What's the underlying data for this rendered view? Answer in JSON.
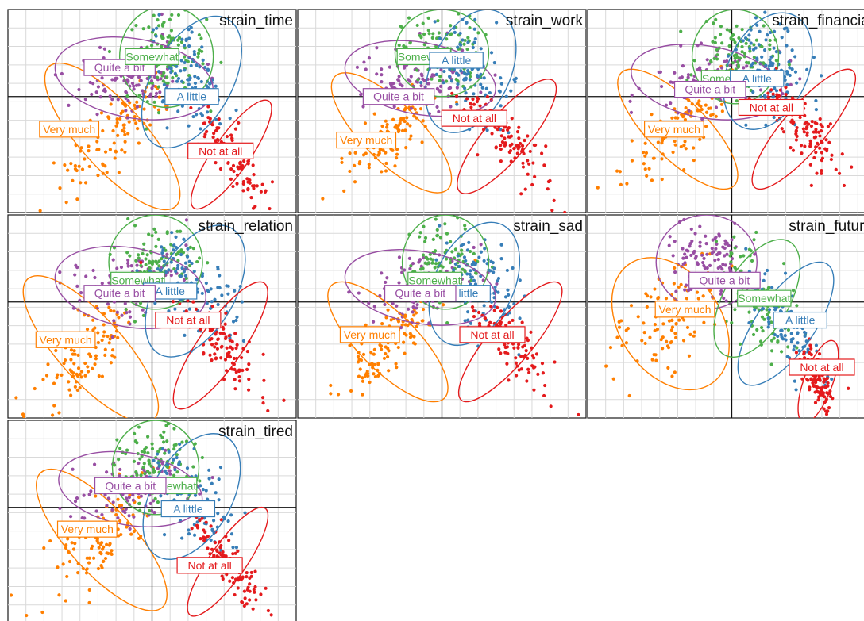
{
  "chart_data": {
    "type": "scatter",
    "grid": true,
    "legend": "none",
    "groups": [
      {
        "name": "Not at all",
        "color": "#e41a1c"
      },
      {
        "name": "A little",
        "color": "#377eb8"
      },
      {
        "name": "Somewhat",
        "color": "#4daf4a"
      },
      {
        "name": "Quite a bit",
        "color": "#984ea3"
      },
      {
        "name": "Very much",
        "color": "#ff7f00"
      }
    ],
    "xlim": [
      -2,
      2
    ],
    "ylim": [
      -1.6,
      1.2
    ],
    "facets": [
      {
        "title": "strain_time",
        "ellipses": [
          {
            "group": "Very much",
            "cx": -0.55,
            "cy": -0.55,
            "rx": 0.45,
            "ry": 1.3,
            "angle": 42
          },
          {
            "group": "Quite a bit",
            "cx": -0.25,
            "cy": 0.25,
            "rx": 0.55,
            "ry": 1.1,
            "angle": 80
          },
          {
            "group": "Somewhat",
            "cx": 0.2,
            "cy": 0.55,
            "rx": 0.65,
            "ry": 0.7,
            "angle": 0
          },
          {
            "group": "A little",
            "cx": 0.55,
            "cy": 0.2,
            "rx": 0.55,
            "ry": 1.0,
            "angle": -30
          },
          {
            "group": "Not at all",
            "cx": 1.1,
            "cy": -0.8,
            "rx": 0.25,
            "ry": 0.9,
            "angle": -35
          }
        ],
        "labels": [
          {
            "group": "Quite a bit",
            "x": -0.45,
            "y": 0.4
          },
          {
            "group": "Somewhat",
            "x": 0.0,
            "y": 0.55
          },
          {
            "group": "A little",
            "x": 0.55,
            "y": 0.0
          },
          {
            "group": "Very much",
            "x": -1.15,
            "y": -0.45
          },
          {
            "group": "Not at all",
            "x": 0.95,
            "y": -0.75
          }
        ]
      },
      {
        "title": "strain_work",
        "ellipses": [
          {
            "group": "Very much",
            "cx": -0.7,
            "cy": -0.5,
            "rx": 0.4,
            "ry": 1.1,
            "angle": 45
          },
          {
            "group": "Quite a bit",
            "cx": -0.3,
            "cy": 0.25,
            "rx": 0.5,
            "ry": 1.05,
            "angle": 80
          },
          {
            "group": "Somewhat",
            "cx": 0.0,
            "cy": 0.6,
            "rx": 0.65,
            "ry": 0.6,
            "angle": 0
          },
          {
            "group": "A little",
            "cx": 0.4,
            "cy": 0.35,
            "rx": 0.55,
            "ry": 0.9,
            "angle": -25
          },
          {
            "group": "Not at all",
            "cx": 0.9,
            "cy": -0.55,
            "rx": 0.3,
            "ry": 1.0,
            "angle": -40
          }
        ],
        "labels": [
          {
            "group": "Somewhat",
            "x": -0.25,
            "y": 0.55
          },
          {
            "group": "A little",
            "x": 0.2,
            "y": 0.5
          },
          {
            "group": "Quite a bit",
            "x": -0.6,
            "y": 0.0
          },
          {
            "group": "Very much",
            "x": -1.05,
            "y": -0.6
          },
          {
            "group": "Not at all",
            "x": 0.45,
            "y": -0.3
          }
        ]
      },
      {
        "title": "strain_financial",
        "ellipses": [
          {
            "group": "Very much",
            "cx": -0.75,
            "cy": -0.45,
            "rx": 0.4,
            "ry": 1.1,
            "angle": 45
          },
          {
            "group": "Quite a bit",
            "cx": -0.35,
            "cy": 0.2,
            "rx": 0.5,
            "ry": 1.05,
            "angle": 80
          },
          {
            "group": "Somewhat",
            "cx": 0.05,
            "cy": 0.55,
            "rx": 0.6,
            "ry": 0.65,
            "angle": 0
          },
          {
            "group": "A little",
            "cx": 0.5,
            "cy": 0.35,
            "rx": 0.55,
            "ry": 0.85,
            "angle": -25
          },
          {
            "group": "Not at all",
            "cx": 1.0,
            "cy": -0.45,
            "rx": 0.3,
            "ry": 1.05,
            "angle": -40
          }
        ],
        "labels": [
          {
            "group": "Somewhat",
            "x": -0.05,
            "y": 0.25
          },
          {
            "group": "A little",
            "x": 0.35,
            "y": 0.25
          },
          {
            "group": "Quite a bit",
            "x": -0.3,
            "y": 0.1
          },
          {
            "group": "Very much",
            "x": -0.8,
            "y": -0.45
          },
          {
            "group": "Not at all",
            "x": 0.55,
            "y": -0.15
          }
        ]
      },
      {
        "title": "strain_relation",
        "ellipses": [
          {
            "group": "Very much",
            "cx": -0.85,
            "cy": -0.65,
            "rx": 0.45,
            "ry": 1.3,
            "angle": 42
          },
          {
            "group": "Quite a bit",
            "cx": -0.3,
            "cy": 0.2,
            "rx": 0.55,
            "ry": 1.05,
            "angle": 80
          },
          {
            "group": "Somewhat",
            "cx": 0.05,
            "cy": 0.55,
            "rx": 0.65,
            "ry": 0.65,
            "angle": 0
          },
          {
            "group": "A little",
            "cx": 0.6,
            "cy": 0.15,
            "rx": 0.55,
            "ry": 1.0,
            "angle": -30
          },
          {
            "group": "Not at all",
            "cx": 0.95,
            "cy": -0.6,
            "rx": 0.3,
            "ry": 1.05,
            "angle": -35
          }
        ],
        "labels": [
          {
            "group": "Somewhat",
            "x": -0.2,
            "y": 0.3
          },
          {
            "group": "A little",
            "x": 0.25,
            "y": 0.15
          },
          {
            "group": "Quite a bit",
            "x": -0.45,
            "y": 0.12
          },
          {
            "group": "Very much",
            "x": -1.2,
            "y": -0.52
          },
          {
            "group": "Not at all",
            "x": 0.5,
            "y": -0.25
          }
        ]
      },
      {
        "title": "strain_sad",
        "ellipses": [
          {
            "group": "Very much",
            "cx": -0.75,
            "cy": -0.55,
            "rx": 0.4,
            "ry": 1.1,
            "angle": 45
          },
          {
            "group": "Quite a bit",
            "cx": -0.3,
            "cy": 0.2,
            "rx": 0.5,
            "ry": 1.05,
            "angle": 80
          },
          {
            "group": "Somewhat",
            "cx": 0.05,
            "cy": 0.55,
            "rx": 0.6,
            "ry": 0.65,
            "angle": 0
          },
          {
            "group": "A little",
            "cx": 0.45,
            "cy": 0.25,
            "rx": 0.55,
            "ry": 0.9,
            "angle": -25
          },
          {
            "group": "Not at all",
            "cx": 0.95,
            "cy": -0.55,
            "rx": 0.3,
            "ry": 1.05,
            "angle": -40
          }
        ],
        "labels": [
          {
            "group": "Somewhat",
            "x": -0.1,
            "y": 0.3
          },
          {
            "group": "A little",
            "x": 0.3,
            "y": 0.12
          },
          {
            "group": "Quite a bit",
            "x": -0.3,
            "y": 0.12
          },
          {
            "group": "Very much",
            "x": -1.0,
            "y": -0.45
          },
          {
            "group": "Not at all",
            "x": 0.7,
            "y": -0.45
          }
        ]
      },
      {
        "title": "strain_future",
        "ellipses": [
          {
            "group": "Very much",
            "cx": -0.85,
            "cy": -0.3,
            "rx": 0.7,
            "ry": 1.0,
            "angle": 35
          },
          {
            "group": "Quite a bit",
            "cx": -0.35,
            "cy": 0.55,
            "rx": 0.7,
            "ry": 0.65,
            "angle": 0
          },
          {
            "group": "Somewhat",
            "cx": 0.35,
            "cy": 0.05,
            "rx": 0.45,
            "ry": 0.9,
            "angle": -30
          },
          {
            "group": "A little",
            "cx": 0.75,
            "cy": -0.3,
            "rx": 0.4,
            "ry": 1.0,
            "angle": -35
          },
          {
            "group": "Not at all",
            "cx": 1.2,
            "cy": -1.1,
            "rx": 0.2,
            "ry": 0.6,
            "angle": -20
          }
        ],
        "labels": [
          {
            "group": "Quite a bit",
            "x": -0.1,
            "y": 0.3
          },
          {
            "group": "Somewhat",
            "x": 0.45,
            "y": 0.05
          },
          {
            "group": "Very much",
            "x": -0.65,
            "y": -0.1
          },
          {
            "group": "A little",
            "x": 0.95,
            "y": -0.25
          },
          {
            "group": "Not at all",
            "x": 1.25,
            "y": -0.9
          }
        ]
      },
      {
        "title": "strain_tired",
        "ellipses": [
          {
            "group": "Very much",
            "cx": -0.7,
            "cy": -0.45,
            "rx": 0.45,
            "ry": 1.25,
            "angle": 42
          },
          {
            "group": "Quite a bit",
            "cx": -0.3,
            "cy": 0.25,
            "rx": 0.5,
            "ry": 1.0,
            "angle": 80
          },
          {
            "group": "Somewhat",
            "cx": 0.05,
            "cy": 0.55,
            "rx": 0.6,
            "ry": 0.65,
            "angle": 0
          },
          {
            "group": "A little",
            "cx": 0.55,
            "cy": 0.15,
            "rx": 0.55,
            "ry": 0.95,
            "angle": -30
          },
          {
            "group": "Not at all",
            "cx": 1.05,
            "cy": -0.75,
            "rx": 0.25,
            "ry": 0.9,
            "angle": -35
          }
        ],
        "labels": [
          {
            "group": "Somewhat",
            "x": 0.25,
            "y": 0.3
          },
          {
            "group": "Quite a bit",
            "x": -0.3,
            "y": 0.3
          },
          {
            "group": "A little",
            "x": 0.5,
            "y": -0.02
          },
          {
            "group": "Very much",
            "x": -0.9,
            "y": -0.3
          },
          {
            "group": "Not at all",
            "x": 0.8,
            "y": -0.8
          }
        ]
      }
    ]
  }
}
